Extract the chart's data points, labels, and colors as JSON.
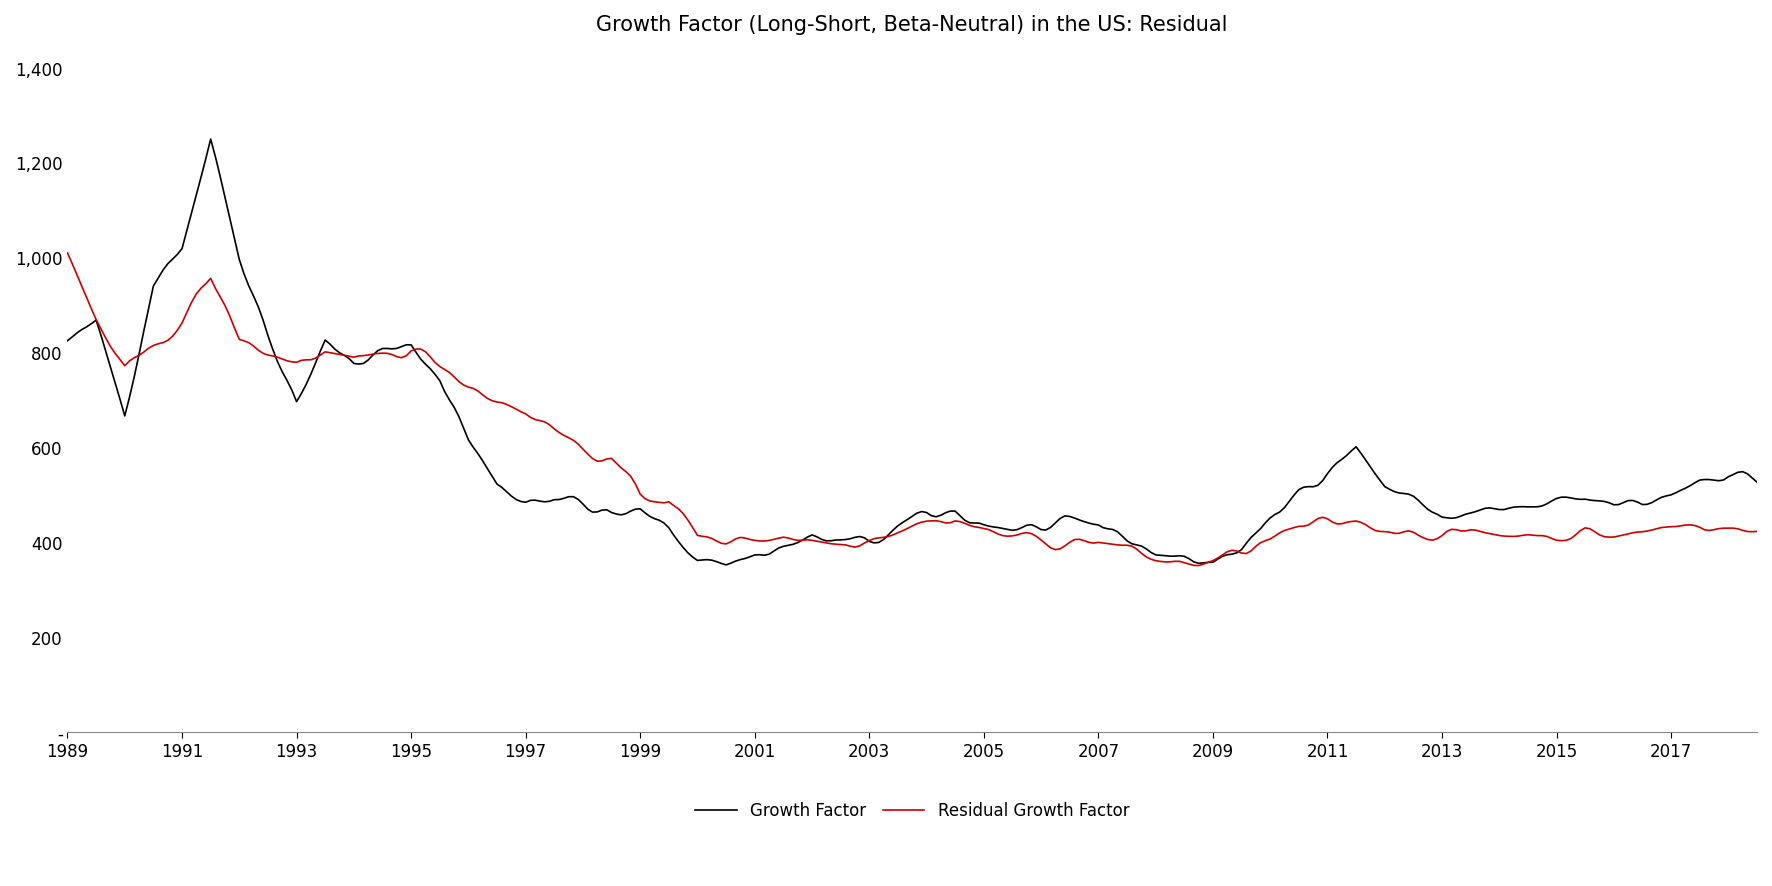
{
  "title": "Growth Factor (Long-Short, Beta-Neutral) in the US: Residual",
  "line1_color": "#000000",
  "line2_color": "#cc0000",
  "line1_label": "Growth Factor",
  "line2_label": "Residual Growth Factor",
  "line_width": 1.2,
  "ylim": [
    0,
    1450
  ],
  "yticks": [
    0,
    200,
    400,
    600,
    800,
    1000,
    1200,
    1400
  ],
  "ytick_labels": [
    "-",
    "200",
    "400",
    "600",
    "800",
    "1,000",
    "1,200",
    "1,400"
  ],
  "xtick_years": [
    1989,
    1991,
    1993,
    1995,
    1997,
    1999,
    2001,
    2003,
    2005,
    2007,
    2009,
    2011,
    2013,
    2015,
    2017
  ],
  "background_color": "#ffffff",
  "title_fontsize": 15,
  "tick_fontsize": 12,
  "legend_fontsize": 12
}
